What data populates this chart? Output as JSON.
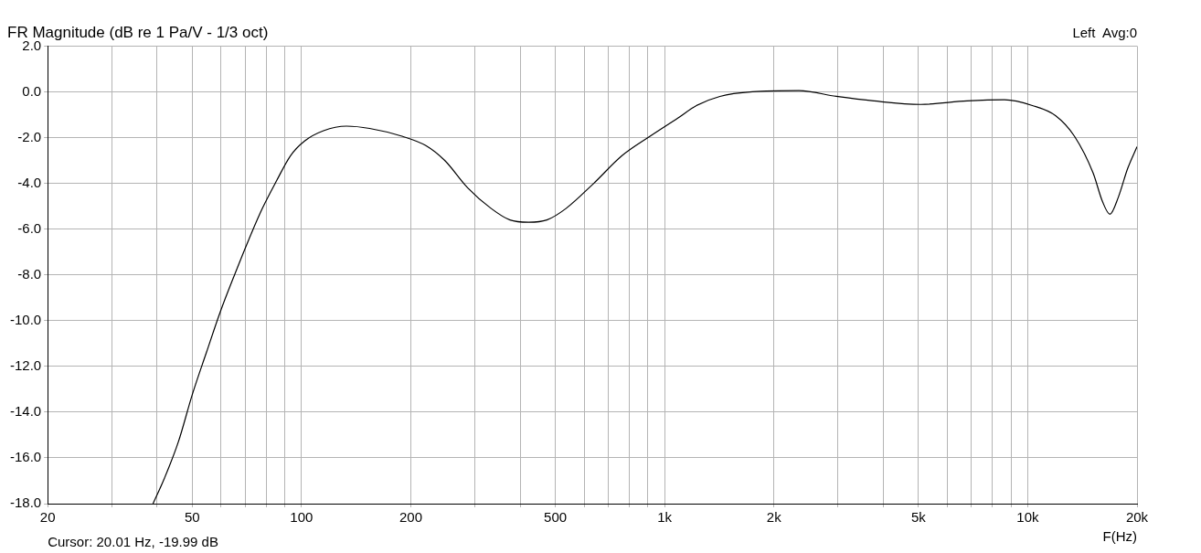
{
  "chart_data": {
    "type": "line",
    "title": "FR Magnitude (dB re 1 Pa/V - 1/3 oct)",
    "xlabel": "F(Hz)",
    "annotations": [
      "Left  Avg:0",
      "Cursor: 20.01 Hz, -19.99 dB"
    ],
    "log": "x",
    "grid": true,
    "legend": false,
    "marker": "none",
    "line_style": "solid",
    "xlim": [
      20,
      20000
    ],
    "xticks": [
      {
        "value": 20,
        "label": "20"
      },
      {
        "value": 30,
        "label": null
      },
      {
        "value": 40,
        "label": null
      },
      {
        "value": 50,
        "label": "50"
      },
      {
        "value": 60,
        "label": null
      },
      {
        "value": 70,
        "label": null
      },
      {
        "value": 80,
        "label": null
      },
      {
        "value": 90,
        "label": null
      },
      {
        "value": 100,
        "label": "100"
      },
      {
        "value": 200,
        "label": "200"
      },
      {
        "value": 300,
        "label": null
      },
      {
        "value": 400,
        "label": null
      },
      {
        "value": 500,
        "label": "500"
      },
      {
        "value": 600,
        "label": null
      },
      {
        "value": 700,
        "label": null
      },
      {
        "value": 800,
        "label": null
      },
      {
        "value": 900,
        "label": null
      },
      {
        "value": 1000,
        "label": "1k"
      },
      {
        "value": 2000,
        "label": "2k"
      },
      {
        "value": 3000,
        "label": null
      },
      {
        "value": 4000,
        "label": null
      },
      {
        "value": 5000,
        "label": "5k"
      },
      {
        "value": 6000,
        "label": null
      },
      {
        "value": 7000,
        "label": null
      },
      {
        "value": 8000,
        "label": null
      },
      {
        "value": 9000,
        "label": null
      },
      {
        "value": 10000,
        "label": "10k"
      },
      {
        "value": 20000,
        "label": "20k"
      }
    ],
    "ylim": [
      -18,
      2
    ],
    "yticks": [
      {
        "value": -18,
        "label": "-18.0"
      },
      {
        "value": -16,
        "label": "-16.0"
      },
      {
        "value": -14,
        "label": "-14.0"
      },
      {
        "value": -12,
        "label": "-12.0"
      },
      {
        "value": -10,
        "label": "-10.0"
      },
      {
        "value": -8,
        "label": "-8.0"
      },
      {
        "value": -6,
        "label": "-6.0"
      },
      {
        "value": -4,
        "label": "-4.0"
      },
      {
        "value": -2,
        "label": "-2.0"
      },
      {
        "value": 0,
        "label": "0.0"
      },
      {
        "value": 2,
        "label": "2.0"
      }
    ],
    "series": [
      {
        "color": "#000000",
        "x": [
          39,
          41.9,
          45.8,
          50.1,
          54.7,
          59.8,
          65.4,
          71.4,
          78,
          85.3,
          93.2,
          102,
          115,
          133,
          154,
          190,
          220,
          248,
          287,
          333,
          375,
          422,
          474,
          535,
          638,
          762,
          910,
          1087,
          1224,
          1420,
          1746,
          2345,
          2970,
          3770,
          5070,
          6810,
          8630,
          10300,
          11950,
          13460,
          15140,
          16070,
          16840,
          17770,
          18850,
          20000
        ],
        "values": [
          -18,
          -16.9,
          -15.3,
          -13.2,
          -11.4,
          -9.6,
          -8,
          -6.5,
          -5.1,
          -3.9,
          -2.8,
          -2.15,
          -1.7,
          -1.5,
          -1.6,
          -1.95,
          -2.35,
          -3,
          -4.2,
          -5.1,
          -5.6,
          -5.7,
          -5.6,
          -5.1,
          -4,
          -2.8,
          -1.95,
          -1.15,
          -0.6,
          -0.2,
          0,
          0.05,
          -0.2,
          -0.4,
          -0.55,
          -0.4,
          -0.35,
          -0.6,
          -1.05,
          -1.95,
          -3.55,
          -4.8,
          -5.35,
          -4.6,
          -3.35,
          -2.4
        ]
      }
    ]
  }
}
